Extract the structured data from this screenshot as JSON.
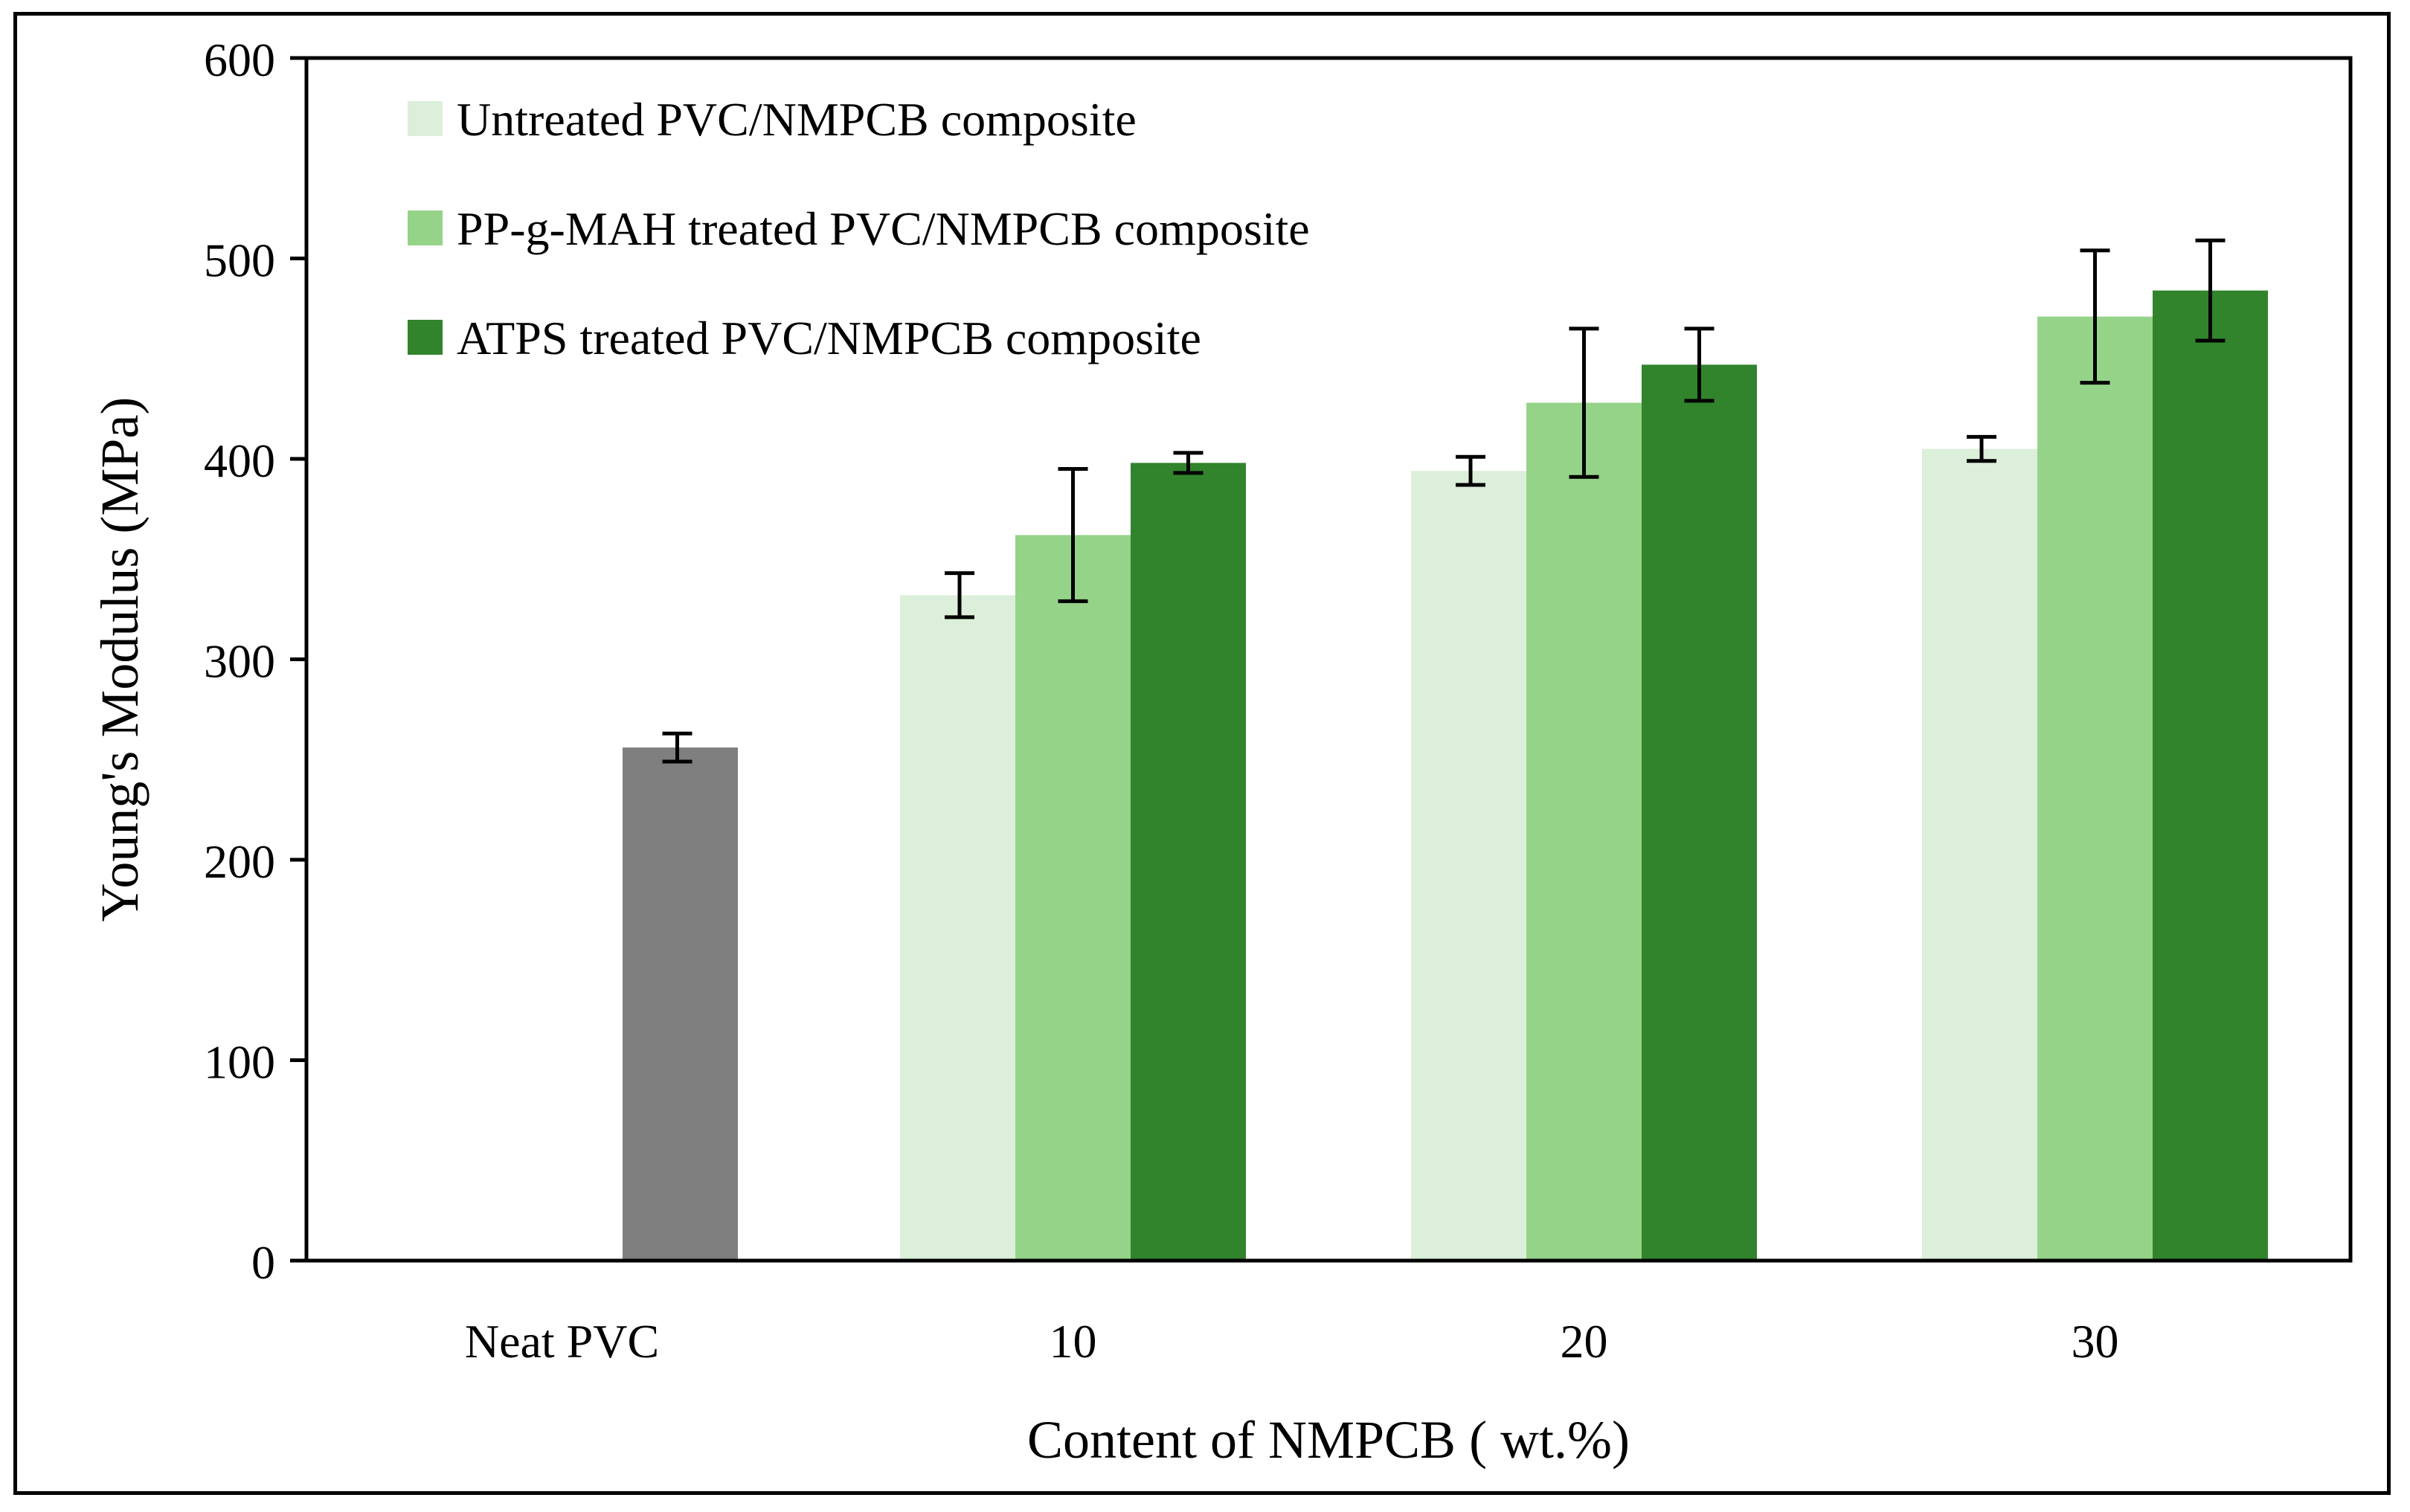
{
  "chart_data": {
    "type": "bar",
    "title": "",
    "xlabel": "Content of NMPCB ( wt.%)",
    "ylabel": "Young's Modulus (MPa)",
    "ylim": [
      0,
      600
    ],
    "yticks": [
      "0",
      "100",
      "200",
      "300",
      "400",
      "500",
      "600"
    ],
    "grid": false,
    "legend_position": "top-left",
    "categories": [
      "Neat PVC",
      "10",
      "20",
      "30"
    ],
    "reference": {
      "name": "Neat PVC",
      "category": "Neat PVC",
      "value": 256,
      "error": 7,
      "color": "#7f7f7f"
    },
    "series": [
      {
        "name": "Untreated PVC/NMPCB composite",
        "color": "#dcefda",
        "values": [
          null,
          332,
          394,
          405
        ],
        "errors": [
          null,
          11,
          7,
          6
        ]
      },
      {
        "name": "PP-g-MAH treated PVC/NMPCB composite",
        "color": "#95d389",
        "values": [
          null,
          362,
          428,
          471
        ],
        "errors": [
          null,
          33,
          37,
          33
        ]
      },
      {
        "name": "ATPS treated PVC/NMPCB composite",
        "color": "#31842c",
        "values": [
          null,
          398,
          447,
          484
        ],
        "errors": [
          null,
          5,
          18,
          25
        ]
      }
    ]
  }
}
